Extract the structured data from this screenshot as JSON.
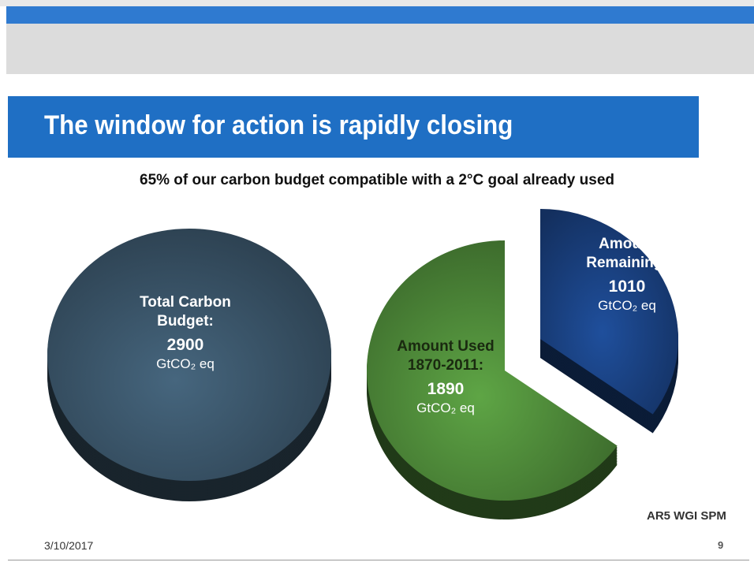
{
  "slide": {
    "title": "The window for action is rapidly closing",
    "subtitle": "65% of our carbon budget compatible with a 2°C goal already used",
    "source": "AR5 WGI SPM",
    "date": "3/10/2017",
    "page": "9"
  },
  "chart_data": [
    {
      "type": "pie",
      "categories": [
        "Total Carbon Budget:"
      ],
      "values": [
        2900
      ],
      "unit": "GtCO₂ eq",
      "colors": [
        "#46667e"
      ]
    },
    {
      "type": "pie",
      "categories": [
        "Amount Used 1870-2011:",
        "Amount Remaining:"
      ],
      "values": [
        1890,
        1010
      ],
      "unit": "GtCO₂ eq",
      "colors": [
        "#5ea545",
        "#1f4f9c"
      ]
    }
  ]
}
